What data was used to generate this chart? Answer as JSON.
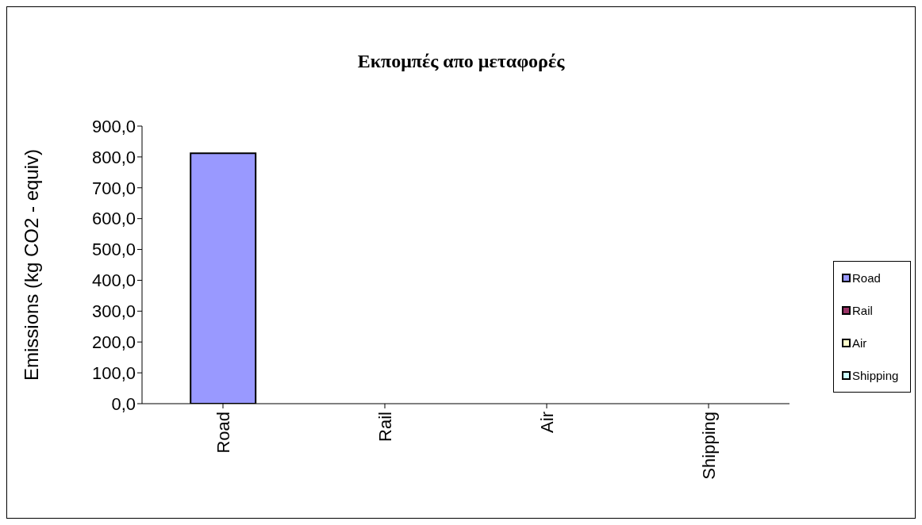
{
  "chart_data": {
    "type": "bar",
    "title": "Εκπομπές απο μεταφορές",
    "ylabel": "Emissions (kg CO2 - equiv)",
    "categories": [
      "Road",
      "Rail",
      "Air",
      "Shipping"
    ],
    "stacked": true,
    "legend": "right",
    "series": [
      {
        "name": "Road",
        "color": "#9999ff",
        "values": [
          812,
          null,
          null,
          null
        ]
      },
      {
        "name": "Rail",
        "color": "#993366",
        "values": [
          null,
          0,
          null,
          null
        ]
      },
      {
        "name": "Air",
        "color": "#ffffcc",
        "values": [
          null,
          null,
          0,
          null
        ]
      },
      {
        "name": "Shipping",
        "color": "#ccffff",
        "values": [
          null,
          null,
          null,
          0
        ]
      }
    ],
    "ylim": [
      0,
      900
    ],
    "yticks": [
      {
        "value": 0,
        "label": "0,0"
      },
      {
        "value": 100,
        "label": "100,0"
      },
      {
        "value": 200,
        "label": "200,0"
      },
      {
        "value": 300,
        "label": "300,0"
      },
      {
        "value": 400,
        "label": "400,0"
      },
      {
        "value": 500,
        "label": "500,0"
      },
      {
        "value": 600,
        "label": "600,0"
      },
      {
        "value": 700,
        "label": "700,0"
      },
      {
        "value": 800,
        "label": "800,0"
      },
      {
        "value": 900,
        "label": "900,0"
      }
    ]
  }
}
